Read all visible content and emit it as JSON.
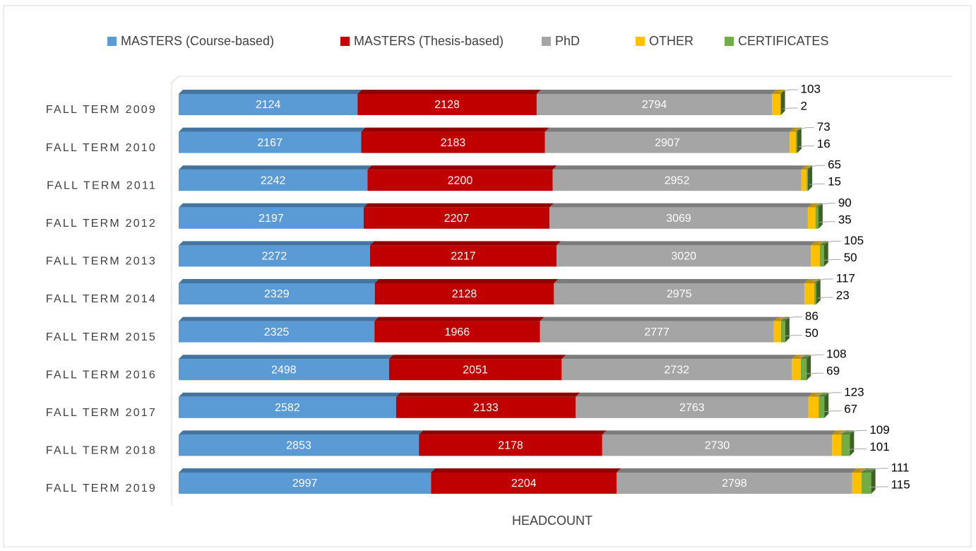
{
  "chart_data": {
    "type": "stacked-bar-horizontal",
    "x_label": "HEADCOUNT",
    "categories": [
      "FALL TERM 2009",
      "FALL TERM 2010",
      "FALL TERM 2011",
      "FALL TERM 2012",
      "FALL TERM 2013",
      "FALL TERM 2014",
      "FALL TERM 2015",
      "FALL TERM 2016",
      "FALL TERM 2017",
      "FALL TERM 2018",
      "FALL TERM 2019"
    ],
    "series": [
      {
        "name": "MASTERS (Course-based)",
        "color": "#5b9bd5",
        "values": [
          2124,
          2167,
          2242,
          2197,
          2272,
          2329,
          2325,
          2498,
          2582,
          2853,
          2997
        ]
      },
      {
        "name": "MASTERS (Thesis-based)",
        "color": "#c00000",
        "values": [
          2128,
          2183,
          2200,
          2207,
          2217,
          2128,
          1966,
          2051,
          2133,
          2178,
          2204
        ]
      },
      {
        "name": "PhD",
        "color": "#a5a5a5",
        "values": [
          2794,
          2907,
          2952,
          3069,
          3020,
          2975,
          2777,
          2732,
          2763,
          2730,
          2798
        ]
      },
      {
        "name": "OTHER",
        "color": "#ffc000",
        "values": [
          103,
          73,
          65,
          90,
          105,
          117,
          86,
          108,
          123,
          109,
          111
        ]
      },
      {
        "name": "CERTIFICATES",
        "color": "#70ad47",
        "values": [
          2,
          16,
          15,
          35,
          50,
          23,
          50,
          69,
          67,
          101,
          115
        ]
      }
    ],
    "xlim": [
      0,
      9000
    ],
    "legend": "top"
  }
}
